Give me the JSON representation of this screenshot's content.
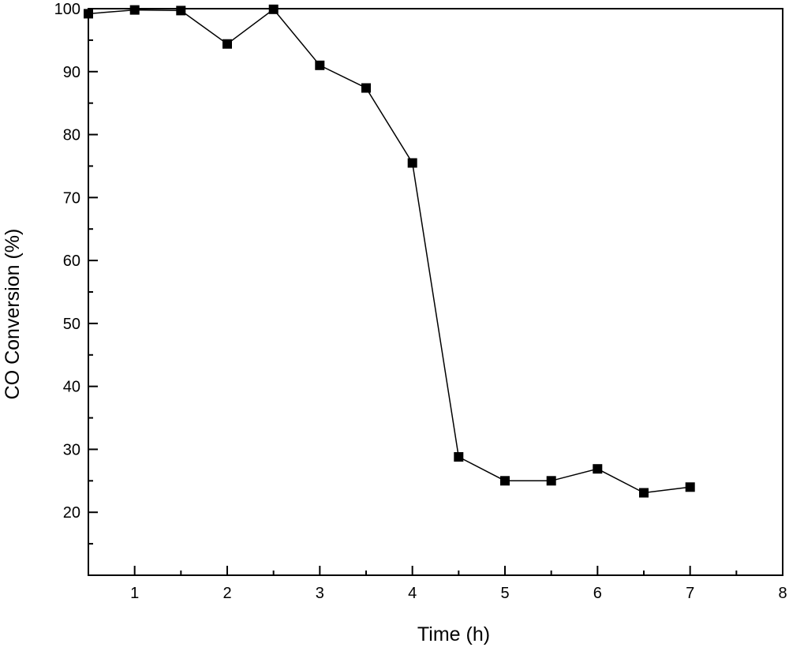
{
  "chart_data": {
    "type": "line",
    "title": "",
    "xlabel": "Time (h)",
    "ylabel": "CO Conversion (%)",
    "xlim": [
      0.5,
      8
    ],
    "ylim": [
      10,
      100
    ],
    "xticks": [
      1,
      2,
      3,
      4,
      5,
      6,
      7,
      8
    ],
    "yticks": [
      20,
      30,
      40,
      50,
      60,
      70,
      80,
      90,
      100
    ],
    "grid": false,
    "legend": "none",
    "marker": "square",
    "color": "#000000",
    "series": [
      {
        "x": [
          0.5,
          1,
          1.5,
          2,
          2.5,
          3,
          3.5,
          4,
          4.5,
          5,
          5.5,
          6,
          6.5,
          7
        ],
        "y": [
          99.2,
          99.8,
          99.7,
          94.4,
          99.9,
          91.0,
          87.4,
          75.5,
          28.8,
          25.0,
          25.0,
          26.9,
          23.1,
          24.0
        ]
      }
    ]
  }
}
